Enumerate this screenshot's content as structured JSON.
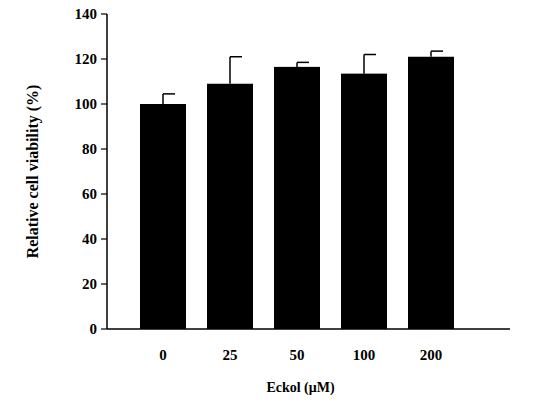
{
  "chart_data": {
    "type": "bar",
    "categories": [
      "0",
      "25",
      "50",
      "100",
      "200"
    ],
    "values": [
      100,
      109,
      116.5,
      113.5,
      121
    ],
    "errors": [
      4.5,
      12,
      2,
      8.5,
      2.5
    ],
    "color": "#000000",
    "ylim": [
      0,
      140
    ],
    "yticks": [
      0,
      20,
      40,
      60,
      80,
      100,
      120,
      140
    ],
    "x_label": "Eckol (μM)",
    "y_label": "Relative cell viability (%)",
    "grid": false
  }
}
